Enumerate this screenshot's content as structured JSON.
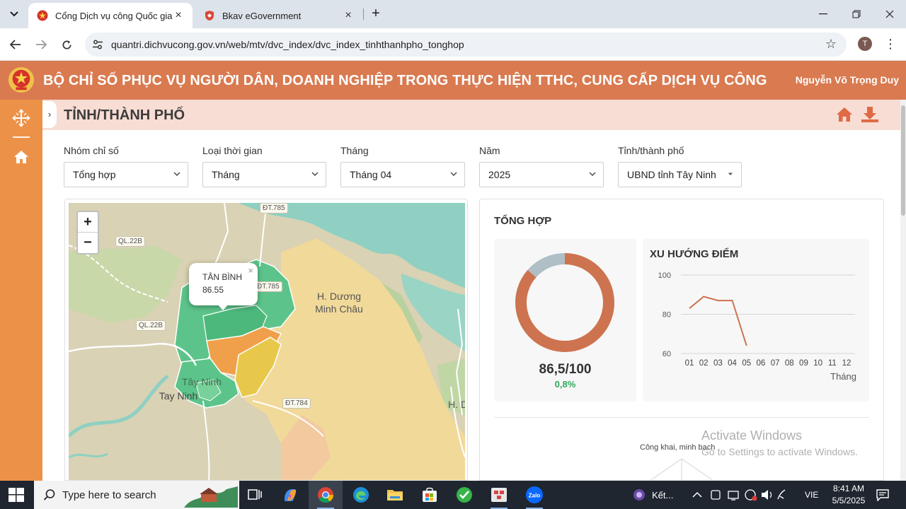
{
  "browser": {
    "tabs": [
      {
        "title": "Cổng Dịch vụ công Quốc gia",
        "active": true
      },
      {
        "title": "Bkav eGovernment",
        "active": false
      }
    ],
    "url": "quantri.dichvucong.gov.vn/web/mtv/dvc_index/dvc_index_tinhthanhpho_tonghop",
    "profile_initial": "T"
  },
  "header": {
    "site_title": "BỘ CHỈ SỐ PHỤC VỤ NGƯỜI DÂN, DOANH NGHIỆP TRONG THỰC HIỆN TTHC, CUNG CẤP DỊCH VỤ CÔNG",
    "user_name": "Nguyễn Võ Trọng Duy"
  },
  "page": {
    "title": "TỈNH/THÀNH PHỐ"
  },
  "filters": [
    {
      "label": "Nhóm chỉ số",
      "value": "Tổng hợp"
    },
    {
      "label": "Loại thời gian",
      "value": "Tháng"
    },
    {
      "label": "Tháng",
      "value": "Tháng 04"
    },
    {
      "label": "Năm",
      "value": "2025"
    },
    {
      "label": "Tỉnh/thành phố",
      "value": "UBND tỉnh Tây Ninh"
    }
  ],
  "map": {
    "zoom_in": "+",
    "zoom_out": "−",
    "popup": {
      "name": "TÂN BÌNH",
      "value": "86.55",
      "close": "×"
    },
    "labels": {
      "dt785": "ĐT.785",
      "ql22b_1": "QL.22B",
      "ql22b_2": "QL.22B",
      "dt785b": "ĐT.785",
      "dt784": "ĐT.784",
      "duong_minh_chau_1": "H. Dương",
      "duong_minh_chau_2": "Minh Châu",
      "tay_ninh_1": "Tây Ninh",
      "tay_ninh_2": "Tay Ninh",
      "h_d": "H. D"
    },
    "colors": {
      "high": "#5cc48a",
      "mid": "#f0a04a",
      "yellow": "#e8c84a",
      "water": "#8fd0c2",
      "land": "#d9d2b4",
      "sand": "#f2d9a0"
    }
  },
  "summary": {
    "title": "TỔNG HỢP",
    "score_text": "86,5/100",
    "delta_text": "0,8%",
    "trend_title": "XU HƯỚNG ĐIỂM",
    "radar_label": "Công khai, minh bạch"
  },
  "chart_data": [
    {
      "type": "pie",
      "title": "",
      "values": [
        86.5,
        13.5
      ],
      "colors": [
        "#cd7350",
        "#b0bec5"
      ]
    },
    {
      "type": "line",
      "title": "XU HƯỚNG ĐIỂM",
      "xlabel": "Tháng",
      "ylabel": "",
      "x": [
        "01",
        "02",
        "03",
        "04",
        "05",
        "06",
        "07",
        "08",
        "09",
        "10",
        "11",
        "12"
      ],
      "series": [
        {
          "values": [
            83,
            89,
            87,
            87,
            64,
            null,
            null,
            null,
            null,
            null,
            null,
            null
          ]
        }
      ],
      "ylim": [
        60,
        100
      ],
      "yticks": [
        60,
        80,
        100
      ],
      "color": "#cd7350"
    }
  ],
  "watermark": {
    "line1": "Activate Windows",
    "line2": "Go to Settings to activate Windows."
  },
  "taskbar": {
    "search_placeholder": "Type here to search",
    "tray_text": "Kết...",
    "lang": "VIE",
    "time": "8:41 AM",
    "date": "5/5/2025"
  }
}
